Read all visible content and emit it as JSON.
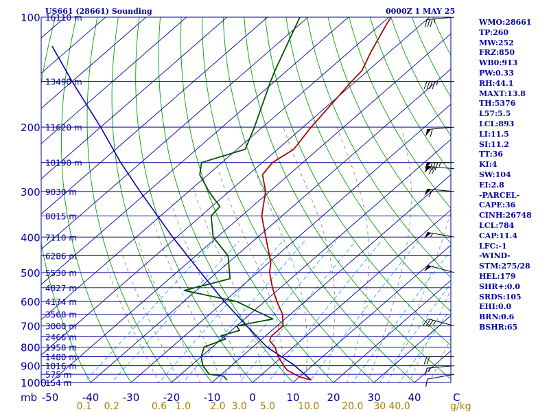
{
  "header": {
    "station": "US661 (28661) Sounding",
    "time": "0000Z  1 MAY 25"
  },
  "stats": [
    "WMO:28661",
    "TP:260",
    "MW:252",
    "FRZ:850",
    "WB0:913",
    "PW:0.33",
    "RH:44.1",
    "MAXT:13.8",
    "TH:5376",
    "L57:5.5",
    "LCL:893",
    "LI:11.5",
    "SI:11.2",
    "TT:36",
    "KI:4",
    "SW:104",
    "EI:2.8",
    "-PARCEL-",
    "CAPE:36",
    "CINH:26748",
    "LCL:784",
    "CAP:11.4",
    "LFC:-1",
    "-WIND-",
    "STM:275/28",
    "HEL:179",
    "SHR+:0.0",
    "SRDS:105",
    "EHI:0.0",
    "BRN:0.6",
    "BSHR:65"
  ],
  "colors": {
    "isobar": "#0000a0",
    "isotherm": "#0000a0",
    "dry_adiabat": "#00a000",
    "moist_adiabat": "#808080",
    "mixing_ratio": "#00a0ff",
    "temperature": "#b00000",
    "dewpoint": "#005000",
    "parcel": "#0000b0",
    "axis_text": "#0000a0",
    "mixing_ratio_text": "#a08000",
    "wind_barb": "#000000"
  },
  "chart_data": {
    "type": "skew-t sounding",
    "x_unit": "C",
    "y_unit": "mb",
    "pressure_ticks": [
      100,
      200,
      300,
      400,
      500,
      600,
      700,
      800,
      900,
      1000
    ],
    "temperature_ticks": [
      -50,
      -40,
      -30,
      -20,
      -10,
      0,
      10,
      20,
      30,
      40
    ],
    "x_tick_labels": [
      "-50",
      "-40",
      "-30",
      "-20",
      "-10",
      "0",
      "10",
      "20",
      "30",
      "40"
    ],
    "pressure_tick_labels": [
      "100",
      "200",
      "300",
      "400",
      "500",
      "600",
      "700",
      "800",
      "900",
      "1000"
    ],
    "y_unit_label": "mb",
    "x_unit_label": "C",
    "mixing_ratio_labels": [
      "0.1",
      "0.2",
      "0.6",
      "1.0",
      "2.0",
      "3.0",
      "5.0",
      "10.0",
      "20.0",
      "30",
      "40.0"
    ],
    "mixing_ratio_unit": "g/kg",
    "height_levels": [
      {
        "p": 100,
        "label": "16110 m"
      },
      {
        "p": 150,
        "label": "13490 m"
      },
      {
        "p": 200,
        "label": "11620 m"
      },
      {
        "p": 250,
        "label": "10190 m"
      },
      {
        "p": 300,
        "label": "9030 m"
      },
      {
        "p": 350,
        "label": "8015 m"
      },
      {
        "p": 400,
        "label": "7110 m"
      },
      {
        "p": 450,
        "label": "6286 m"
      },
      {
        "p": 500,
        "label": "5530 m"
      },
      {
        "p": 550,
        "label": "4827 m"
      },
      {
        "p": 600,
        "label": "4174 m"
      },
      {
        "p": 650,
        "label": "3568 m"
      },
      {
        "p": 700,
        "label": "3000 m"
      },
      {
        "p": 750,
        "label": "2466 m"
      },
      {
        "p": 800,
        "label": "1958 m"
      },
      {
        "p": 850,
        "label": "1480 m"
      },
      {
        "p": 900,
        "label": "1016 m"
      },
      {
        "p": 950,
        "label": "575 m"
      },
      {
        "p": 1000,
        "label": "154 m"
      }
    ],
    "temperature_profile": [
      {
        "p": 985,
        "t": 13.8
      },
      {
        "p": 965,
        "t": 10.0
      },
      {
        "p": 925,
        "t": 5.0
      },
      {
        "p": 900,
        "t": 3.0
      },
      {
        "p": 850,
        "t": -1.0
      },
      {
        "p": 800,
        "t": -4.5
      },
      {
        "p": 770,
        "t": -7.5
      },
      {
        "p": 750,
        "t": -8.5
      },
      {
        "p": 700,
        "t": -8.5
      },
      {
        "p": 650,
        "t": -12.0
      },
      {
        "p": 600,
        "t": -17.0
      },
      {
        "p": 550,
        "t": -22.0
      },
      {
        "p": 500,
        "t": -27.0
      },
      {
        "p": 470,
        "t": -29.5
      },
      {
        "p": 400,
        "t": -38.0
      },
      {
        "p": 350,
        "t": -45.0
      },
      {
        "p": 300,
        "t": -51.0
      },
      {
        "p": 270,
        "t": -56.5
      },
      {
        "p": 250,
        "t": -57.5
      },
      {
        "p": 230,
        "t": -56.0
      },
      {
        "p": 200,
        "t": -58.0
      },
      {
        "p": 150,
        "t": -61.0
      },
      {
        "p": 140,
        "t": -61.5
      },
      {
        "p": 125,
        "t": -64.5
      },
      {
        "p": 105,
        "t": -68.5
      },
      {
        "p": 100,
        "t": -69.5
      }
    ],
    "dewpoint_profile": [
      {
        "p": 985,
        "t": -7.0
      },
      {
        "p": 960,
        "t": -9.0
      },
      {
        "p": 950,
        "t": -13.0
      },
      {
        "p": 900,
        "t": -17.0
      },
      {
        "p": 850,
        "t": -20.0
      },
      {
        "p": 800,
        "t": -22.0
      },
      {
        "p": 760,
        "t": -19.0
      },
      {
        "p": 745,
        "t": -21.0
      },
      {
        "p": 720,
        "t": -18.0
      },
      {
        "p": 700,
        "t": -20.0
      },
      {
        "p": 670,
        "t": -13.0
      },
      {
        "p": 600,
        "t": -27.0
      },
      {
        "p": 560,
        "t": -43.0
      },
      {
        "p": 520,
        "t": -35.0
      },
      {
        "p": 450,
        "t": -42.0
      },
      {
        "p": 400,
        "t": -51.0
      },
      {
        "p": 350,
        "t": -57.5
      },
      {
        "p": 330,
        "t": -58.0
      },
      {
        "p": 300,
        "t": -65.0
      },
      {
        "p": 270,
        "t": -72.0
      },
      {
        "p": 250,
        "t": -75.0
      },
      {
        "p": 230,
        "t": -68.0
      },
      {
        "p": 200,
        "t": -72.0
      },
      {
        "p": 150,
        "t": -81.0
      },
      {
        "p": 140,
        "t": -83.0
      },
      {
        "p": 100,
        "t": -92.0
      }
    ],
    "parcel_profile": [
      {
        "p": 985,
        "t": 13.8
      },
      {
        "p": 893,
        "t": 5.0
      },
      {
        "p": 800,
        "t": -6.5
      },
      {
        "p": 700,
        "t": -17.5
      },
      {
        "p": 600,
        "t": -30.0
      },
      {
        "p": 500,
        "t": -44.0
      },
      {
        "p": 400,
        "t": -61.0
      },
      {
        "p": 300,
        "t": -82.0
      },
      {
        "p": 250,
        "t": -95.0
      },
      {
        "p": 200,
        "t": -110.0
      },
      {
        "p": 150,
        "t": -130.0
      },
      {
        "p": 120,
        "t": -145.0
      }
    ],
    "wind_barbs": [
      {
        "p": 100,
        "dir": 265,
        "spd": 35
      },
      {
        "p": 150,
        "dir": 270,
        "spd": 45
      },
      {
        "p": 200,
        "dir": 265,
        "spd": 60
      },
      {
        "p": 250,
        "dir": 270,
        "spd": 85
      },
      {
        "p": 260,
        "dir": 275,
        "spd": 70
      },
      {
        "p": 300,
        "dir": 275,
        "spd": 60
      },
      {
        "p": 400,
        "dir": 280,
        "spd": 55
      },
      {
        "p": 500,
        "dir": 285,
        "spd": 50
      },
      {
        "p": 700,
        "dir": 285,
        "spd": 35
      },
      {
        "p": 850,
        "dir": 270,
        "spd": 20
      },
      {
        "p": 900,
        "dir": 265,
        "spd": 15
      },
      {
        "p": 950,
        "dir": 260,
        "spd": 10
      }
    ]
  }
}
